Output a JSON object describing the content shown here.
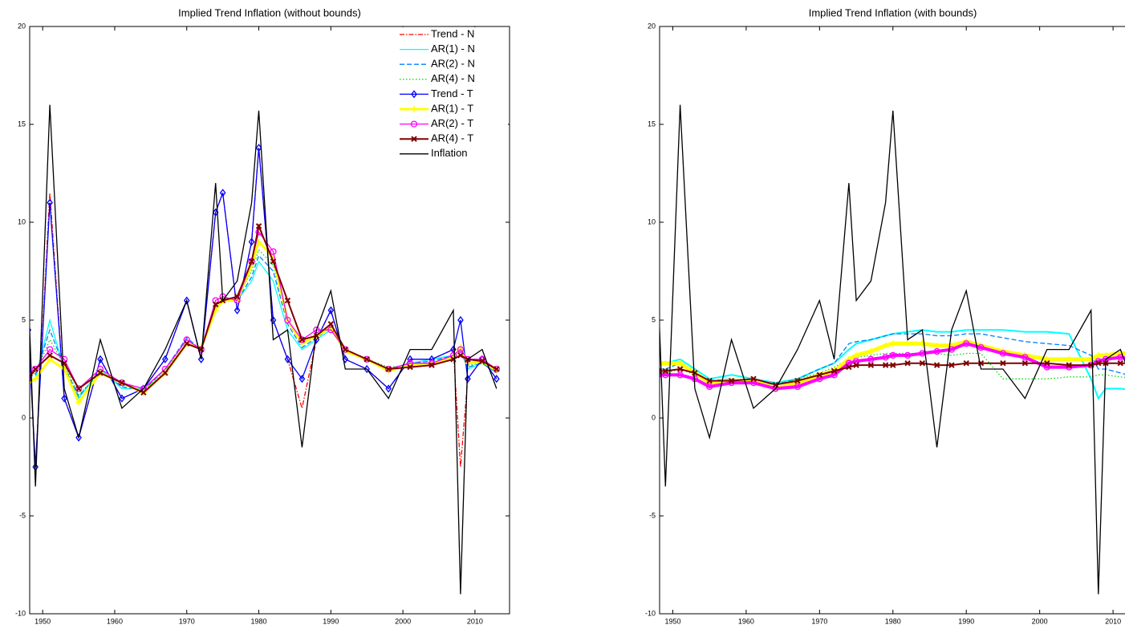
{
  "chart_data": [
    {
      "type": "line",
      "title": "Implied Trend Inflation (without bounds)",
      "x": [
        1948,
        1949,
        1951,
        1953,
        1955,
        1958,
        1961,
        1964,
        1967,
        1970,
        1972,
        1974,
        1975,
        1977,
        1979,
        1980,
        1982,
        1984,
        1986,
        1988,
        1990,
        1992,
        1995,
        1998,
        2001,
        2004,
        2007,
        2008,
        2009,
        2011,
        2013
      ],
      "xlim": [
        1948.2,
        2014.8
      ],
      "xticks": [
        1950,
        1960,
        1970,
        1980,
        1990,
        2000,
        2010
      ],
      "ylim": [
        -10,
        20
      ],
      "yticks": [
        -10,
        -5,
        0,
        5,
        10,
        15,
        20
      ],
      "legend": "upper right",
      "series": [
        {
          "name": "Trend - N",
          "color": "#ff0000",
          "style": "-.",
          "values": [
            4.5,
            -2.5,
            11.5,
            1,
            -1,
            3,
            1,
            1.5,
            3,
            6,
            3,
            10.5,
            11.5,
            5.5,
            9,
            13.8,
            5,
            3,
            0.5,
            4,
            5.5,
            3,
            2.5,
            1.5,
            3,
            3,
            3.5,
            -2.5,
            2,
            3,
            2
          ]
        },
        {
          "name": "AR(1) - N",
          "color": "#00ffff",
          "style": "-",
          "values": [
            2,
            2,
            5,
            2.5,
            1,
            2.5,
            1.5,
            1.5,
            2.5,
            4,
            3.5,
            5.5,
            6,
            6,
            7,
            8,
            7,
            4.5,
            3.5,
            4,
            4.5,
            3.5,
            3,
            2.5,
            2.8,
            3,
            3.2,
            3.5,
            2.5,
            2.8,
            2.3
          ]
        },
        {
          "name": "AR(2) - N",
          "color": "#0080ff",
          "style": "--",
          "values": [
            2.1,
            2.2,
            4.5,
            2.6,
            1.1,
            2.4,
            1.6,
            1.4,
            2.5,
            4.1,
            3.5,
            5.6,
            6.1,
            6,
            7.2,
            8.3,
            7.5,
            4.8,
            3.6,
            4.1,
            4.6,
            3.5,
            3,
            2.5,
            2.8,
            2.9,
            3.2,
            3.4,
            2.6,
            2.8,
            2.3
          ]
        },
        {
          "name": "AR(4) - N",
          "color": "#00e000",
          "style": ":",
          "values": [
            2.1,
            2.3,
            4,
            2.7,
            1.2,
            2.3,
            1.7,
            1.4,
            2.4,
            4,
            3.5,
            5.7,
            6,
            6.1,
            7.5,
            8.6,
            7.8,
            5,
            3.8,
            4.2,
            4.7,
            3.5,
            3,
            2.6,
            2.7,
            2.8,
            3.1,
            3.3,
            2.7,
            2.8,
            2.4
          ]
        },
        {
          "name": "Trend - T",
          "color": "#0000ff",
          "style": "-",
          "marker": "diamond",
          "values": [
            4.5,
            -2.5,
            11,
            1,
            -1,
            3,
            1,
            1.5,
            3,
            6,
            3,
            10.5,
            11.5,
            5.5,
            9,
            13.8,
            5,
            3,
            2,
            4,
            5.5,
            3,
            2.5,
            1.5,
            3,
            3,
            3.5,
            5,
            2,
            3,
            2
          ]
        },
        {
          "name": "AR(1) - T",
          "color": "#ffff00",
          "style": "-",
          "marker": "plus",
          "width": 3,
          "values": [
            1.8,
            2,
            3,
            2.5,
            0.8,
            2.3,
            1.8,
            1.3,
            2.3,
            3.8,
            3.6,
            5.5,
            6,
            6,
            7.8,
            9,
            8.2,
            5,
            3.8,
            4.2,
            4.6,
            3.4,
            3,
            2.4,
            2.7,
            2.8,
            3.1,
            3.6,
            2.8,
            2.9,
            2.4
          ]
        },
        {
          "name": "AR(2) - T",
          "color": "#ff00ff",
          "style": "-",
          "marker": "circle",
          "values": [
            2.2,
            2.5,
            3.5,
            3,
            1.5,
            2.5,
            1.8,
            1.5,
            2.5,
            4,
            3.5,
            6,
            6.2,
            6,
            8,
            9.5,
            8.5,
            5,
            4,
            4.5,
            4.5,
            3.5,
            3,
            2.5,
            2.8,
            2.8,
            3.2,
            3.5,
            3,
            3,
            2.5
          ]
        },
        {
          "name": "AR(4) - T",
          "color": "#800000",
          "style": "-",
          "marker": "x",
          "width": 2,
          "values": [
            2,
            2.5,
            3.2,
            2.8,
            1.5,
            2.3,
            1.8,
            1.3,
            2.3,
            3.8,
            3.5,
            5.8,
            6,
            6.2,
            8,
            9.8,
            8,
            6,
            4,
            4.2,
            4.8,
            3.5,
            3,
            2.5,
            2.6,
            2.7,
            3,
            3.2,
            3,
            2.9,
            2.5
          ]
        },
        {
          "name": "Inflation",
          "color": "#000000",
          "style": "-",
          "values": [
            6.5,
            -3.5,
            16,
            1.5,
            -1,
            4,
            0.5,
            1.5,
            3.5,
            6,
            3,
            12,
            6,
            7,
            11,
            15.7,
            4,
            4.5,
            -1.5,
            4.5,
            6.5,
            2.5,
            2.5,
            1,
            3.5,
            3.5,
            5.5,
            -9,
            3,
            3.5,
            1.5
          ]
        }
      ]
    },
    {
      "type": "line",
      "title": "Implied Trend Inflation (with bounds)",
      "x": [
        1948,
        1949,
        1951,
        1953,
        1955,
        1958,
        1961,
        1964,
        1967,
        1970,
        1972,
        1974,
        1975,
        1977,
        1979,
        1980,
        1982,
        1984,
        1986,
        1988,
        1990,
        1992,
        1995,
        1998,
        2001,
        2004,
        2007,
        2008,
        2009,
        2011,
        2013
      ],
      "xlim": [
        1948.2,
        2014.8
      ],
      "xticks": [
        1950,
        1960,
        1970,
        1980,
        1990,
        2000,
        2010
      ],
      "ylim": [
        -10,
        20
      ],
      "yticks": [
        -10,
        -5,
        0,
        5,
        10,
        15,
        20
      ],
      "series": [
        {
          "color": "#00ffff",
          "style": "-",
          "width": 2,
          "values": [
            2.8,
            2.8,
            3,
            2.5,
            2,
            2.2,
            2,
            1.8,
            2,
            2.5,
            2.8,
            3.5,
            3.8,
            4,
            4.2,
            4.3,
            4.4,
            4.5,
            4.4,
            4.4,
            4.5,
            4.5,
            4.5,
            4.4,
            4.4,
            4.3,
            2,
            1,
            1.5,
            1.5,
            1.4
          ]
        },
        {
          "color": "#0080ff",
          "style": "--",
          "values": [
            2.5,
            2.5,
            2.8,
            2.3,
            1.9,
            2,
            1.9,
            1.7,
            2,
            2.5,
            2.8,
            3.8,
            3.9,
            4,
            4.2,
            4.3,
            4.3,
            4.3,
            4.2,
            4.2,
            4.3,
            4.3,
            4.1,
            3.9,
            3.8,
            3.7,
            3.2,
            2.5,
            2.5,
            2.3,
            2.1
          ]
        },
        {
          "color": "#00e000",
          "style": ":",
          "values": [
            2.3,
            2.3,
            2.5,
            2.2,
            1.8,
            2,
            1.9,
            1.7,
            2,
            2.3,
            2.6,
            3,
            3.1,
            3.2,
            3.3,
            3.3,
            3.3,
            3.3,
            3.3,
            3.2,
            3.3,
            3.3,
            2,
            2,
            2,
            2.1,
            2.1,
            2.2,
            2.2,
            2.1,
            2
          ]
        },
        {
          "color": "#ffff00",
          "style": "-",
          "marker": "plus",
          "width": 5,
          "values": [
            2.8,
            2.8,
            2.8,
            2.3,
            1.8,
            1.9,
            1.9,
            1.5,
            1.8,
            2.2,
            2.4,
            3,
            3.2,
            3.4,
            3.7,
            3.8,
            3.8,
            3.8,
            3.7,
            3.7,
            3.9,
            3.7,
            3.4,
            3.2,
            3,
            3,
            3,
            3.2,
            3.2,
            3.3,
            3.3
          ]
        },
        {
          "color": "#ff00ff",
          "style": "-",
          "marker": "circle",
          "width": 4,
          "values": [
            2.2,
            2.2,
            2.2,
            2,
            1.6,
            1.8,
            1.8,
            1.5,
            1.6,
            2,
            2.2,
            2.8,
            2.9,
            3,
            3.1,
            3.2,
            3.2,
            3.3,
            3.4,
            3.5,
            3.8,
            3.6,
            3.3,
            3.1,
            2.6,
            2.6,
            2.7,
            2.9,
            3,
            3.1,
            3
          ]
        },
        {
          "color": "#800000",
          "style": "-",
          "marker": "x",
          "width": 2,
          "values": [
            2.4,
            2.4,
            2.5,
            2.3,
            1.9,
            1.9,
            2,
            1.7,
            1.9,
            2.2,
            2.4,
            2.6,
            2.7,
            2.7,
            2.7,
            2.7,
            2.8,
            2.8,
            2.7,
            2.7,
            2.8,
            2.8,
            2.8,
            2.8,
            2.8,
            2.7,
            2.7,
            2.8,
            2.8,
            2.8,
            2.8
          ]
        },
        {
          "color": "#000000",
          "style": "-",
          "values": [
            6.5,
            -3.5,
            16,
            1.5,
            -1,
            4,
            0.5,
            1.5,
            3.5,
            6,
            3,
            12,
            6,
            7,
            11,
            15.7,
            4,
            4.5,
            -1.5,
            4.5,
            6.5,
            2.5,
            2.5,
            1,
            3.5,
            3.5,
            5.5,
            -9,
            3,
            3.5,
            1.5
          ]
        }
      ]
    }
  ]
}
